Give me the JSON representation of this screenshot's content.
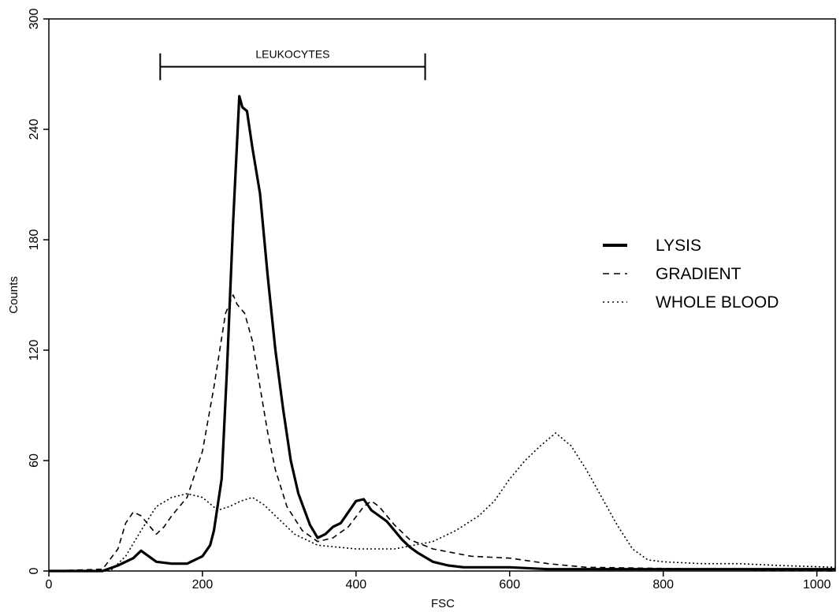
{
  "chart_data": {
    "type": "line",
    "title": "",
    "xlabel": "FSC",
    "ylabel": "Counts",
    "xlim": [
      0,
      1024
    ],
    "ylim": [
      0,
      300
    ],
    "x_ticks": [
      0,
      200,
      400,
      600,
      800,
      1000
    ],
    "y_ticks": [
      0,
      60,
      120,
      180,
      240,
      300
    ],
    "grid": false,
    "legend_position": "right",
    "annotation": {
      "label": "LEUKOCYTES",
      "x_range": [
        145,
        490
      ],
      "y": 274
    },
    "series": [
      {
        "name": "LYSIS",
        "style": "solid",
        "x": [
          0,
          70,
          90,
          110,
          120,
          130,
          140,
          160,
          180,
          200,
          210,
          215,
          225,
          232,
          240,
          248,
          252,
          258,
          265,
          275,
          285,
          295,
          305,
          315,
          325,
          340,
          350,
          360,
          370,
          380,
          390,
          400,
          410,
          420,
          430,
          440,
          450,
          460,
          470,
          480,
          500,
          520,
          540,
          560,
          580,
          600,
          650,
          700,
          800,
          1024
        ],
        "y": [
          0,
          0,
          3,
          7,
          11,
          8,
          5,
          4,
          4,
          8,
          14,
          22,
          50,
          110,
          190,
          258,
          252,
          250,
          230,
          205,
          160,
          120,
          88,
          60,
          42,
          25,
          18,
          20,
          24,
          26,
          32,
          38,
          39,
          33,
          30,
          27,
          22,
          17,
          13,
          10,
          5,
          3,
          2,
          2,
          2,
          2,
          1,
          1,
          1,
          1
        ]
      },
      {
        "name": "GRADIENT",
        "style": "dashed",
        "x": [
          0,
          70,
          90,
          100,
          110,
          120,
          130,
          140,
          150,
          160,
          180,
          200,
          215,
          230,
          240,
          245,
          255,
          265,
          275,
          285,
          295,
          310,
          330,
          350,
          370,
          390,
          410,
          420,
          430,
          450,
          470,
          500,
          550,
          600,
          650,
          700,
          1024
        ],
        "y": [
          0,
          1,
          12,
          26,
          32,
          30,
          25,
          20,
          24,
          30,
          40,
          65,
          100,
          140,
          150,
          145,
          140,
          125,
          100,
          75,
          55,
          35,
          22,
          16,
          18,
          24,
          35,
          38,
          35,
          25,
          17,
          12,
          8,
          7,
          4,
          2,
          0
        ]
      },
      {
        "name": "WHOLE BLOOD",
        "style": "dotted",
        "x": [
          0,
          80,
          100,
          120,
          140,
          160,
          180,
          200,
          220,
          235,
          250,
          265,
          280,
          300,
          320,
          350,
          400,
          450,
          500,
          530,
          560,
          580,
          600,
          620,
          640,
          660,
          680,
          700,
          720,
          740,
          760,
          780,
          800,
          850,
          900,
          950,
          1024
        ],
        "y": [
          0,
          0,
          8,
          22,
          35,
          40,
          42,
          40,
          33,
          35,
          38,
          40,
          36,
          28,
          20,
          14,
          12,
          12,
          16,
          22,
          30,
          38,
          50,
          60,
          68,
          75,
          68,
          55,
          40,
          25,
          12,
          6,
          5,
          4,
          4,
          3,
          2
        ]
      }
    ]
  }
}
